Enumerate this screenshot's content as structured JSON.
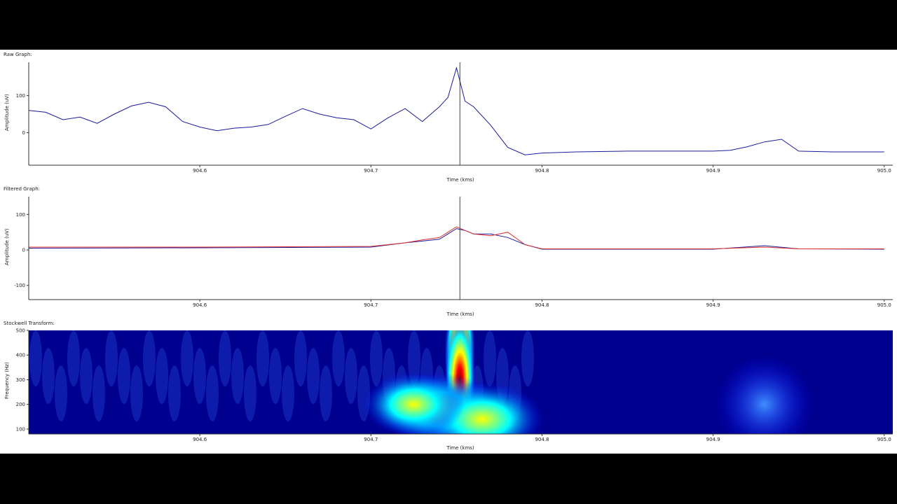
{
  "panels": [
    {
      "title": "Raw Graph:",
      "ylabel": "Amplitude (uV)",
      "xlabel": "Time (kms)",
      "yticks": [
        "100",
        "0"
      ],
      "xticks": [
        "904.6",
        "904.7",
        "904.8",
        "904.9",
        "905.0"
      ]
    },
    {
      "title": "Filtered Graph:",
      "ylabel": "Amplitude (uV)",
      "xlabel": "Time (kms)",
      "yticks": [
        "100",
        "0",
        "-100"
      ],
      "xticks": [
        "904.6",
        "904.7",
        "904.8",
        "904.9",
        "905.0"
      ]
    },
    {
      "title": "Stockwell Transform:",
      "ylabel": "Frequency (Hz)",
      "xlabel": "Time (kms)",
      "yticks": [
        "500",
        "400",
        "300",
        "200",
        "100"
      ],
      "xticks": [
        "904.6",
        "904.7",
        "904.8",
        "904.9",
        "905.0"
      ]
    }
  ],
  "chart_data": [
    {
      "type": "line",
      "title": "Raw Graph:",
      "xlabel": "Time (kms)",
      "ylabel": "Amplitude (uV)",
      "xlim": [
        904.5,
        905.005
      ],
      "ylim": [
        -88,
        190
      ],
      "marker_x": 904.752,
      "series": [
        {
          "color": "#1a1a9a",
          "x": [
            904.5,
            904.51,
            904.52,
            904.53,
            904.54,
            904.55,
            904.56,
            904.57,
            904.58,
            904.59,
            904.6,
            904.61,
            904.62,
            904.63,
            904.64,
            904.65,
            904.66,
            904.67,
            904.68,
            904.69,
            904.7,
            904.71,
            904.72,
            904.73,
            904.74,
            904.745,
            904.75,
            904.755,
            904.76,
            904.77,
            904.78,
            904.79,
            904.8,
            904.82,
            904.85,
            904.9,
            904.91,
            904.92,
            904.93,
            904.94,
            904.95,
            904.97,
            905.0
          ],
          "y": [
            60,
            55,
            35,
            42,
            25,
            50,
            72,
            82,
            70,
            30,
            15,
            5,
            12,
            15,
            22,
            44,
            65,
            50,
            40,
            35,
            10,
            40,
            65,
            30,
            70,
            95,
            175,
            85,
            70,
            20,
            -40,
            -60,
            -55,
            -52,
            -50,
            -50,
            -48,
            -38,
            -25,
            -18,
            -50,
            -52,
            -52
          ]
        }
      ]
    },
    {
      "type": "line",
      "title": "Filtered Graph:",
      "xlabel": "Time (kms)",
      "ylabel": "Amplitude (uV)",
      "xlim": [
        904.5,
        905.005
      ],
      "ylim": [
        -140,
        150
      ],
      "marker_x": 904.752,
      "series": [
        {
          "color": "#1a1a9a",
          "x": [
            904.5,
            904.6,
            904.7,
            904.72,
            904.73,
            904.74,
            904.745,
            904.75,
            904.755,
            904.76,
            904.77,
            904.78,
            904.79,
            904.8,
            904.9,
            904.93,
            904.95,
            905.0
          ],
          "y": [
            5,
            6,
            8,
            20,
            25,
            30,
            45,
            60,
            55,
            45,
            45,
            35,
            15,
            2,
            2,
            12,
            3,
            2
          ]
        },
        {
          "color": "#e03030",
          "x": [
            904.5,
            904.6,
            904.7,
            904.72,
            904.73,
            904.74,
            904.745,
            904.75,
            904.755,
            904.76,
            904.77,
            904.78,
            904.79,
            904.8,
            904.9,
            904.93,
            904.95,
            905.0
          ],
          "y": [
            8,
            8,
            10,
            20,
            28,
            35,
            50,
            65,
            55,
            45,
            40,
            50,
            15,
            3,
            3,
            8,
            3,
            3
          ]
        }
      ]
    },
    {
      "type": "heatmap",
      "title": "Stockwell Transform:",
      "xlabel": "Time (kms)",
      "ylabel": "Frequency (Hz)",
      "xlim": [
        904.5,
        905.005
      ],
      "ylim": [
        80,
        500
      ],
      "marker_x": 904.752,
      "colormap": [
        "#00007f",
        "#0000ff",
        "#00ffff",
        "#ffff00",
        "#ff0000",
        "#7f0000"
      ],
      "hotspots": [
        {
          "x": 904.752,
          "y": 420,
          "intensity": 1.0
        },
        {
          "x": 904.752,
          "y": 300,
          "intensity": 0.95
        },
        {
          "x": 904.74,
          "y": 180,
          "intensity": 0.75
        },
        {
          "x": 904.765,
          "y": 140,
          "intensity": 0.8
        },
        {
          "x": 904.725,
          "y": 200,
          "intensity": 0.55
        },
        {
          "x": 904.93,
          "y": 200,
          "intensity": 0.35
        }
      ]
    }
  ]
}
